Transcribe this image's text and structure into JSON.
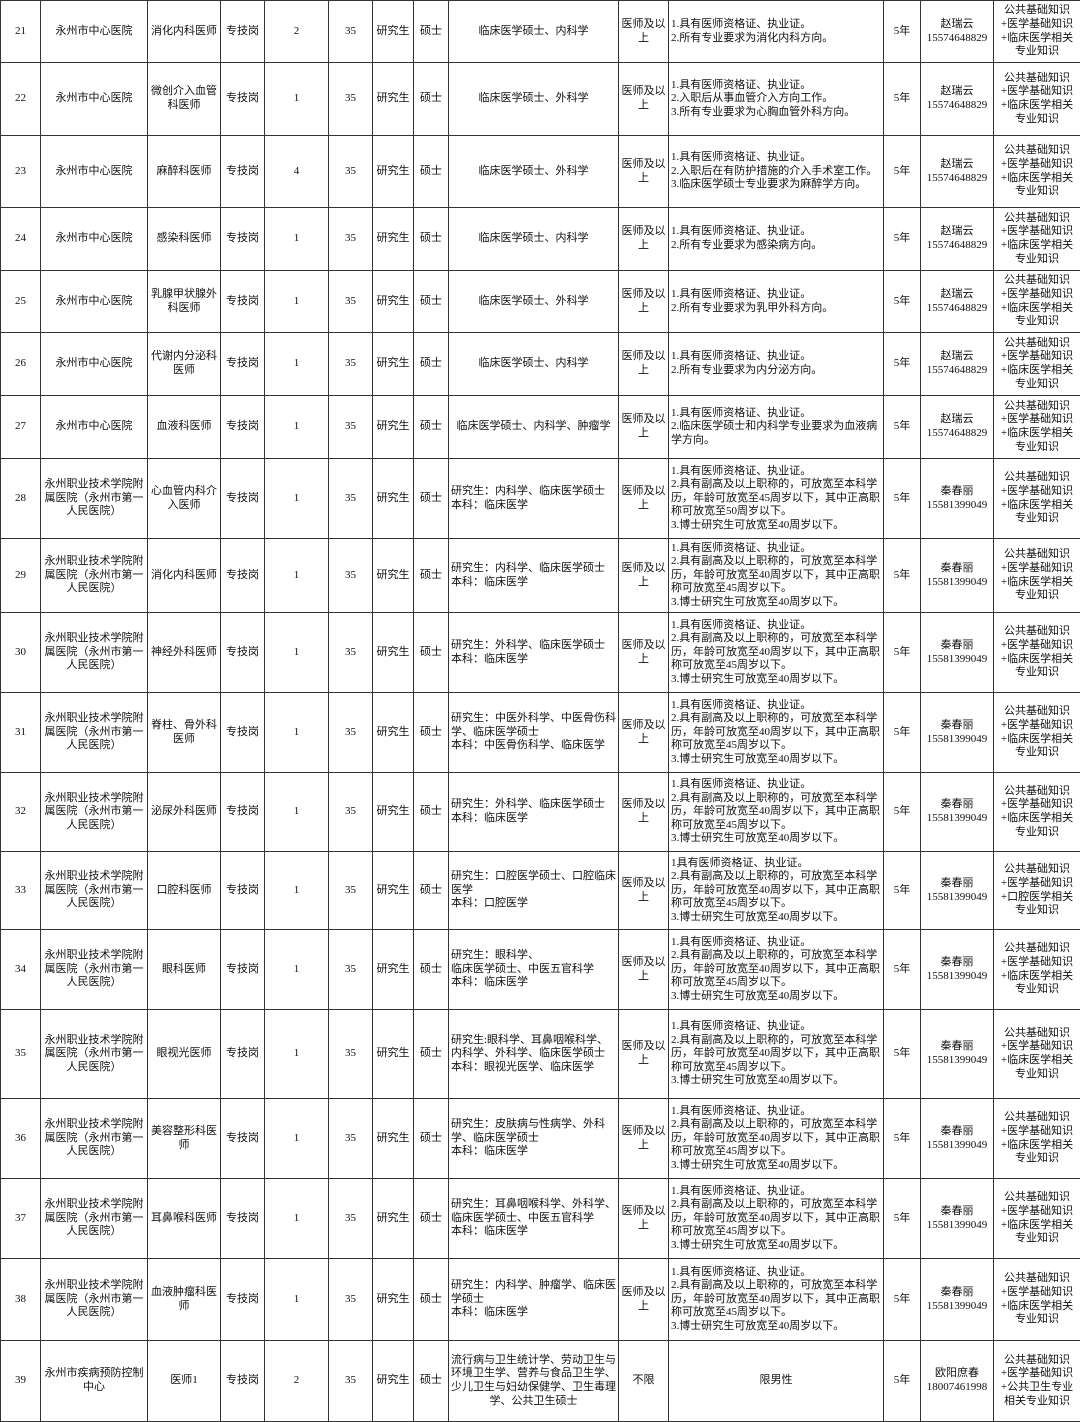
{
  "table": {
    "rows": [
      [
        21,
        "永州市中心医院",
        "消化内科医师",
        "专技岗",
        2,
        35,
        "研究生",
        "硕士",
        "临床医学硕士、内科学",
        "医师及以上",
        "1.具有医师资格证、执业证。\n2.所有专业要求为消化内科方向。",
        "5年",
        "赵瑞云\n15574648829",
        "公共基础知识+医学基础知识+临床医学相关专业知识"
      ],
      [
        22,
        "永州市中心医院",
        "微创介入血管科医师",
        "专技岗",
        1,
        35,
        "研究生",
        "硕士",
        "临床医学硕士、外科学",
        "医师及以上",
        "1.具有医师资格证、执业证。\n2.入职后从事血管介入方向工作。\n3.所有专业要求为心胸血管外科方向。",
        "5年",
        "赵瑞云\n15574648829",
        "公共基础知识+医学基础知识+临床医学相关专业知识"
      ],
      [
        23,
        "永州市中心医院",
        "麻醉科医师",
        "专技岗",
        4,
        35,
        "研究生",
        "硕士",
        "临床医学硕士、外科学",
        "医师及以上",
        "1.具有医师资格证、执业证。\n2.入职后在有防护措施的介入手术室工作。\n3.临床医学硕士专业要求为麻醉学方向。",
        "5年",
        "赵瑞云\n15574648829",
        "公共基础知识+医学基础知识+临床医学相关专业知识"
      ],
      [
        24,
        "永州市中心医院",
        "感染科医师",
        "专技岗",
        1,
        35,
        "研究生",
        "硕士",
        "临床医学硕士、内科学",
        "医师及以上",
        "1.具有医师资格证、执业证。\n2.所有专业要求为感染病方向。",
        "5年",
        "赵瑞云\n15574648829",
        "公共基础知识+医学基础知识+临床医学相关专业知识"
      ],
      [
        25,
        "永州市中心医院",
        "乳腺甲状腺外科医师",
        "专技岗",
        1,
        35,
        "研究生",
        "硕士",
        "临床医学硕士、外科学",
        "医师及以上",
        "1.具有医师资格证、执业证。\n2.所有专业要求为乳甲外科方向。",
        "5年",
        "赵瑞云\n15574648829",
        "公共基础知识+医学基础知识+临床医学相关专业知识"
      ],
      [
        26,
        "永州市中心医院",
        "代谢内分泌科医师",
        "专技岗",
        1,
        35,
        "研究生",
        "硕士",
        "临床医学硕士、内科学",
        "医师及以上",
        "1.具有医师资格证、执业证。\n2.所有专业要求为内分泌方向。",
        "5年",
        "赵瑞云\n15574648829",
        "公共基础知识+医学基础知识+临床医学相关专业知识"
      ],
      [
        27,
        "永州市中心医院",
        "血液科医师",
        "专技岗",
        1,
        35,
        "研究生",
        "硕士",
        "临床医学硕士、内科学、肿瘤学",
        "医师及以上",
        "1.具有医师资格证、执业证。\n2.临床医学硕士和内科学专业要求为血液病学方向。",
        "5年",
        "赵瑞云\n15574648829",
        "公共基础知识+医学基础知识+临床医学相关专业知识"
      ],
      [
        28,
        "永州职业技术学院附属医院（永州市第一人民医院）",
        "心血管内科介入医师",
        "专技岗",
        1,
        35,
        "研究生",
        "硕士",
        "研究生：内科学、临床医学硕士\n本科：临床医学",
        "医师及以上",
        "1.具有医师资格证、执业证。\n2.具有副高及以上职称的，可放宽至本科学历，年龄可放宽至45周岁以下，其中正高职称可放宽至50周岁以下。\n3.博士研究生可放宽至40周岁以下。",
        "5年",
        "秦春丽\n15581399049",
        "公共基础知识+医学基础知识+临床医学相关专业知识"
      ],
      [
        29,
        "永州职业技术学院附属医院（永州市第一人民医院）",
        "消化内科医师",
        "专技岗",
        1,
        35,
        "研究生",
        "硕士",
        "研究生：内科学、临床医学硕士\n本科：临床医学",
        "医师及以上",
        "1.具有医师资格证、执业证。\n2.具有副高及以上职称的，可放宽至本科学历，年龄可放宽至40周岁以下，其中正高职称可放宽至45周岁以下。\n3.博士研究生可放宽至40周岁以下。",
        "5年",
        "秦春丽\n15581399049",
        "公共基础知识+医学基础知识+临床医学相关专业知识"
      ],
      [
        30,
        "永州职业技术学院附属医院（永州市第一人民医院）",
        "神经外科医师",
        "专技岗",
        1,
        35,
        "研究生",
        "硕士",
        "研究生：外科学、临床医学硕士\n本科：临床医学",
        "医师及以上",
        "1.具有医师资格证、执业证。\n2.具有副高及以上职称的，可放宽至本科学历，年龄可放宽至40周岁以下，其中正高职称可放宽至45周岁以下。\n3.博士研究生可放宽至40周岁以下。",
        "5年",
        "秦春丽\n15581399049",
        "公共基础知识+医学基础知识+临床医学相关专业知识"
      ],
      [
        31,
        "永州职业技术学院附属医院（永州市第一人民医院）",
        "脊柱、骨外科医师",
        "专技岗",
        1,
        35,
        "研究生",
        "硕士",
        "研究生：中医外科学、中医骨伤科学、临床医学硕士\n本科：中医骨伤科学、临床医学",
        "医师及以上",
        "1.具有医师资格证、执业证。\n2.具有副高及以上职称的，可放宽至本科学历，年龄可放宽至40周岁以下，其中正高职称可放宽至45周岁以下。\n3.博士研究生可放宽至40周岁以下。",
        "5年",
        "秦春丽\n15581399049",
        "公共基础知识+医学基础知识+临床医学相关专业知识"
      ],
      [
        32,
        "永州职业技术学院附属医院（永州市第一人民医院）",
        "泌尿外科医师",
        "专技岗",
        1,
        35,
        "研究生",
        "硕士",
        "研究生：外科学、临床医学硕士\n本科：临床医学",
        "医师及以上",
        "1.具有医师资格证、执业证。\n2.具有副高及以上职称的，可放宽至本科学历，年龄可放宽至40周岁以下，其中正高职称可放宽至45周岁以下。\n3.博士研究生可放宽至40周岁以下。",
        "5年",
        "秦春丽\n15581399049",
        "公共基础知识+医学基础知识+临床医学相关专业知识"
      ],
      [
        33,
        "永州职业技术学院附属医院（永州市第一人民医院）",
        "口腔科医师",
        "专技岗",
        1,
        35,
        "研究生",
        "硕士",
        "研究生：口腔医学硕士、口腔临床医学\n本科：口腔医学",
        "医师及以上",
        "1具有医师资格证、执业证。\n2.具有副高及以上职称的，可放宽至本科学历，年龄可放宽至40周岁以下，其中正高职称可放宽至45周岁以下。\n3.博士研究生可放宽至40周岁以下。",
        "5年",
        "秦春丽\n15581399049",
        "公共基础知识+医学基础知识+口腔医学相关专业知识"
      ],
      [
        34,
        "永州职业技术学院附属医院（永州市第一人民医院）",
        "眼科医师",
        "专技岗",
        1,
        35,
        "研究生",
        "硕士",
        "研究生：眼科学、\n临床医学硕士、中医五官科学\n本科：临床医学",
        "医师及以上",
        "1.具有医师资格证、执业证。\n2.具有副高及以上职称的，可放宽至本科学历，年龄可放宽至40周岁以下，其中正高职称可放宽至45周岁以下。\n3.博士研究生可放宽至40周岁以下。",
        "5年",
        "秦春丽\n15581399049",
        "公共基础知识+医学基础知识+临床医学相关专业知识"
      ],
      [
        35,
        "永州职业技术学院附属医院（永州市第一人民医院）",
        "眼视光医师",
        "专技岗",
        1,
        35,
        "研究生",
        "硕士",
        "研究生:眼科学、耳鼻咽喉科学、内科学、外科学、临床医学硕士\n本科：眼视光医学、临床医学",
        "医师及以上",
        "1.具有医师资格证、执业证。\n2.具有副高及以上职称的，可放宽至本科学历，年龄可放宽至40周岁以下，其中正高职称可放宽至45周岁以下。\n3.博士研究生可放宽至40周岁以下。",
        "5年",
        "秦春丽\n15581399049",
        "公共基础知识+医学基础知识+临床医学相关专业知识"
      ],
      [
        36,
        "永州职业技术学院附属医院（永州市第一人民医院）",
        "美容整形科医师",
        "专技岗",
        1,
        35,
        "研究生",
        "硕士",
        "研究生：皮肤病与性病学、外科学、临床医学硕士\n本科：临床医学",
        "医师及以上",
        "1.具有医师资格证、执业证。\n2.具有副高及以上职称的，可放宽至本科学历，年龄可放宽至40周岁以下，其中正高职称可放宽至45周岁以下。\n3.博士研究生可放宽至40周岁以下。",
        "5年",
        "秦春丽\n15581399049",
        "公共基础知识+医学基础知识+临床医学相关专业知识"
      ],
      [
        37,
        "永州职业技术学院附属医院（永州市第一人民医院）",
        "耳鼻喉科医师",
        "专技岗",
        1,
        35,
        "研究生",
        "硕士",
        "研究生：耳鼻咽喉科学、外科学、临床医学硕士、中医五官科学\n本科：临床医学",
        "医师及以上",
        "1.具有医师资格证、执业证。\n2.具有副高及以上职称的，可放宽至本科学历，年龄可放宽至40周岁以下，其中正高职称可放宽至45周岁以下。\n3.博士研究生可放宽至40周岁以下。",
        "5年",
        "秦春丽\n15581399049",
        "公共基础知识+医学基础知识+临床医学相关专业知识"
      ],
      [
        38,
        "永州职业技术学院附属医院（永州市第一人民医院）",
        "血液肿瘤科医师",
        "专技岗",
        1,
        35,
        "研究生",
        "硕士",
        "研究生：内科学、肿瘤学、临床医学硕士\n本科：临床医学",
        "医师及以上",
        "1.具有医师资格证、执业证。\n2.具有副高及以上职称的，可放宽至本科学历，年龄可放宽至40周岁以下，其中正高职称可放宽至45周岁以下。\n3.博士研究生可放宽至40周岁以下。",
        "5年",
        "秦春丽\n15581399049",
        "公共基础知识+医学基础知识+临床医学相关专业知识"
      ],
      [
        39,
        "永州市疾病预防控制中心",
        "医师1",
        "专技岗",
        2,
        35,
        "研究生",
        "硕士",
        "流行病与卫生统计学、劳动卫生与环境卫生学、营养与食品卫生学、少儿卫生与妇幼保健学、卫生毒理学、公共卫生硕士",
        "不限",
        "限男性",
        "5年",
        "欧阳庶春\n18007461998",
        "公共基础知识+医学基础知识+公共卫生专业相关专业知识"
      ]
    ]
  }
}
